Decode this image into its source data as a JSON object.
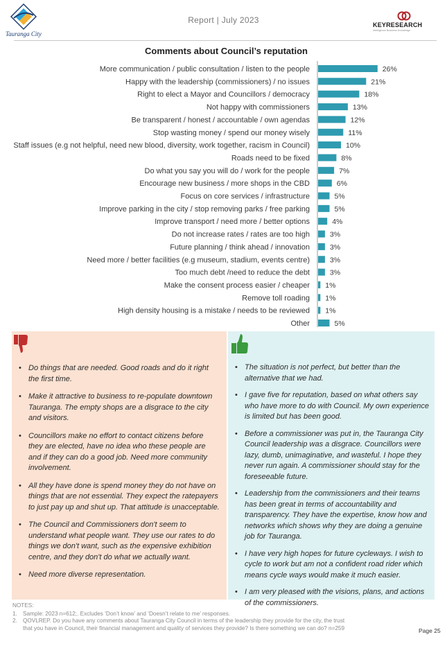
{
  "header": {
    "logo_left_text": "Tauranga City",
    "report_title": "Report | July 2023",
    "logo_right_brand": "KEYRESEARCH",
    "logo_right_tagline": "Intelligence  Business  Knowledge"
  },
  "chart_data": {
    "type": "bar",
    "orientation": "horizontal",
    "title": "Comments about Council’s reputation",
    "value_suffix": "%",
    "bar_color": "#2e9bb0",
    "categories": [
      "More communication / public consultation / listen to the people",
      "Happy with the leadership (commissioners) / no issues",
      "Right to elect a Mayor and Councillors / democracy",
      "Not happy with commissioners",
      "Be transparent / honest / accountable / own agendas",
      "Stop wasting money / spend our money wisely",
      "Staff issues (e.g not helpful, need new blood, diversity, work together, racism in Council)",
      "Roads need to be fixed",
      "Do what you say you will do / work for the people",
      "Encourage new business / more shops in the CBD",
      "Focus on core services / infrastructure",
      "Improve parking in the city / stop removing parks / free parking",
      "Improve transport / need more / better options",
      "Do not increase rates / rates are too high",
      "Future planning / think ahead / innovation",
      "Need more / better facilities (e.g museum, stadium, events centre)",
      "Too much debt /need to reduce the debt",
      "Make the consent process easier / cheaper",
      "Remove toll roading",
      "High density housing is a mistake / needs to be reviewed",
      "Other"
    ],
    "values": [
      26,
      21,
      18,
      13,
      12,
      11,
      10,
      8,
      7,
      6,
      5,
      5,
      4,
      3,
      3,
      3,
      3,
      1,
      1,
      1,
      5
    ]
  },
  "negative_panel": {
    "icon": "thumbs-down-icon",
    "color": "#fbe2d2",
    "icon_color": "#c0302f",
    "comments": [
      "Do things that are needed. Good roads and do it right the first time.",
      "Make it attractive to business to re-populate downtown Tauranga. The empty shops are a disgrace to the city and visitors.",
      "Councillors make no effort to contact citizens before they are elected, have no idea who these people are and if they can do a good job. Need more community involvement.",
      "All they have done is spend money they do not have on things that are not essential. They expect the ratepayers to just pay up and shut up. That attitude is unacceptable.",
      "The Council and Commissioners don't seem to understand what people want. They use our rates to do things we don't want, such as the expensive exhibition centre, and they don't do what we actually want.",
      "Need more diverse representation."
    ]
  },
  "positive_panel": {
    "icon": "thumbs-up-icon",
    "color": "#dff2f3",
    "icon_color": "#3a9a3e",
    "comments": [
      "The situation is not perfect, but better than the alternative that we had.",
      "I gave five for reputation, based on what others say who have more to do with Council. My own experience is limited but has been good.",
      "Before a commissioner was put in, the Tauranga City Council leadership was a disgrace. Councillors were lazy, dumb, unimaginative, and wasteful. I hope they never run again. A commissioner should stay for the foreseeable future.",
      "Leadership from the commissioners and their teams has been great in terms of accountability and transparency. They have the expertise, know how and networks which shows why they are doing a genuine job for Tauranga.",
      "I have very high hopes for future cycleways. I wish to cycle to work but am not a confident road rider which means cycle ways would make it much easier.",
      "I am very pleased with the visions, plans, and actions of the commissioners."
    ]
  },
  "notes": {
    "title": "NOTES:",
    "items": [
      {
        "num": "1.",
        "text": "Sample: 2023 n=612;. Excludes ‘Don’t know’ and ‘Doesn’t relate to me’ responses."
      },
      {
        "num": "2.",
        "text": "QOVLREP. Do you have any comments about Tauranga City Council in terms of the leadership they provide for the city, the trust that you have in Council, their financial management and quality of services they provide? Is there something we can do? n=259"
      }
    ]
  },
  "page_label": "Page 25"
}
